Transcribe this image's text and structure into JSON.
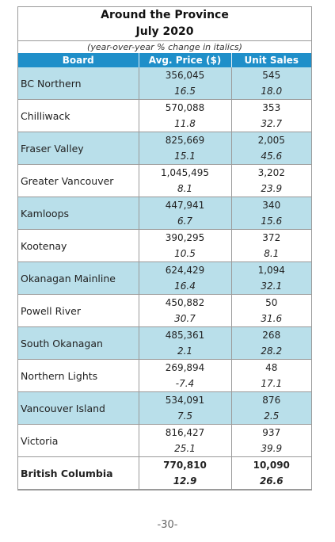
{
  "title_line1": "Around the Province",
  "title_line2": "July 2020",
  "subtitle": "(year-over-year % change in italics)",
  "columns": [
    "Board",
    "Avg. Price ($)",
    "Unit Sales"
  ],
  "rows": [
    {
      "board": "BC Northern",
      "price": "356,045",
      "price_change": "16.5",
      "sales": "545",
      "sales_change": "18.0"
    },
    {
      "board": "Chilliwack",
      "price": "570,088",
      "price_change": "11.8",
      "sales": "353",
      "sales_change": "32.7"
    },
    {
      "board": "Fraser Valley",
      "price": "825,669",
      "price_change": "15.1",
      "sales": "2,005",
      "sales_change": "45.6"
    },
    {
      "board": "Greater Vancouver",
      "price": "1,045,495",
      "price_change": "8.1",
      "sales": "3,202",
      "sales_change": "23.9"
    },
    {
      "board": "Kamloops",
      "price": "447,941",
      "price_change": "6.7",
      "sales": "340",
      "sales_change": "15.6"
    },
    {
      "board": "Kootenay",
      "price": "390,295",
      "price_change": "10.5",
      "sales": "372",
      "sales_change": "8.1"
    },
    {
      "board": "Okanagan Mainline",
      "price": "624,429",
      "price_change": "16.4",
      "sales": "1,094",
      "sales_change": "32.1"
    },
    {
      "board": "Powell River",
      "price": "450,882",
      "price_change": "30.7",
      "sales": "50",
      "sales_change": "31.6"
    },
    {
      "board": "South Okanagan",
      "price": "485,361",
      "price_change": "2.1",
      "sales": "268",
      "sales_change": "28.2"
    },
    {
      "board": "Northern Lights",
      "price": "269,894",
      "price_change": "-7.4",
      "sales": "48",
      "sales_change": "17.1"
    },
    {
      "board": "Vancouver Island",
      "price": "534,091",
      "price_change": "7.5",
      "sales": "876",
      "sales_change": "2.5"
    },
    {
      "board": "Victoria",
      "price": "816,427",
      "price_change": "25.1",
      "sales": "937",
      "sales_change": "39.9"
    }
  ],
  "total": {
    "board": "British Columbia",
    "price": "770,810",
    "price_change": "12.9",
    "sales": "10,090",
    "sales_change": "26.6"
  },
  "page_number": "-30-",
  "colors": {
    "header_blue": "#1f8fc9",
    "row_shade": "#b9dfea"
  }
}
